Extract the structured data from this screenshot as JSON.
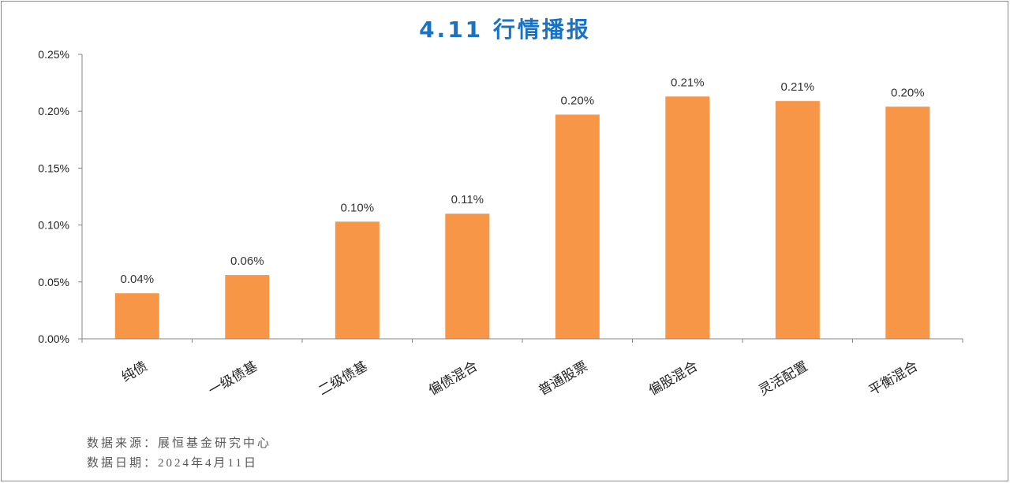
{
  "chart_data": {
    "type": "bar",
    "title": "4.11 行情播报",
    "categories": [
      "纯债",
      "一级债基",
      "二级债基",
      "偏债混合",
      "普通股票",
      "偏股混合",
      "灵活配置",
      "平衡混合"
    ],
    "series": [
      {
        "values": [
          0.04,
          0.056,
          0.103,
          0.11,
          0.197,
          0.213,
          0.209,
          0.204
        ]
      }
    ],
    "data_labels": [
      "0.04%",
      "0.06%",
      "0.10%",
      "0.11%",
      "0.20%",
      "0.21%",
      "0.21%",
      "0.20%"
    ],
    "ylim": [
      0,
      0.25
    ],
    "y_ticks": [
      {
        "value": 0.0,
        "label": "0.00%"
      },
      {
        "value": 0.05,
        "label": "0.05%"
      },
      {
        "value": 0.1,
        "label": "0.10%"
      },
      {
        "value": 0.15,
        "label": "0.15%"
      },
      {
        "value": 0.2,
        "label": "0.20%"
      },
      {
        "value": 0.25,
        "label": "0.25%"
      }
    ],
    "grid": false,
    "show_legend": false,
    "bar_color": "#F79646"
  },
  "footer": {
    "source": "数据来源：展恒基金研究中心",
    "date": "数据日期：2024年4月11日"
  },
  "colors": {
    "title": "#1a73c2",
    "axis": "#868686"
  }
}
